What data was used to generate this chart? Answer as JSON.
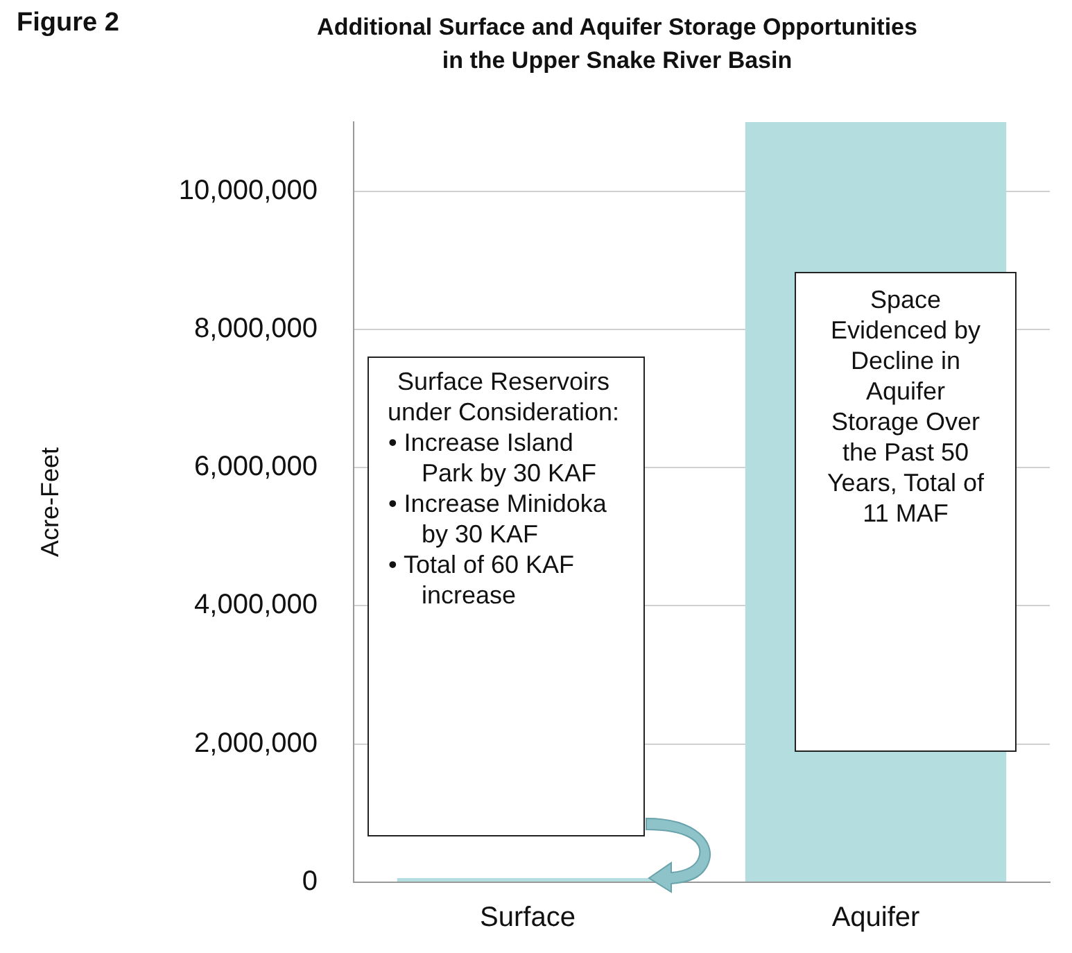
{
  "chart_data": {
    "type": "bar",
    "title": "Additional Surface and Aquifer Storage Opportunities in the Upper Snake River Basin",
    "ylabel": "Acre-Feet",
    "categories": [
      "Surface",
      "Aquifer"
    ],
    "values": [
      60000,
      11000000
    ],
    "color": "#b4dde0",
    "ylim": [
      0,
      11000000
    ],
    "yticks": [
      0,
      {
        "value": 2000000,
        "label": "2,000,000"
      },
      {
        "value": 4000000,
        "label": "4,000,000"
      },
      {
        "value": 6000000,
        "label": "6,000,000"
      },
      {
        "value": 8000000,
        "label": "8,000,000"
      },
      {
        "value": 10000000,
        "label": "10,000,000"
      }
    ],
    "grid": "y",
    "annotations": [
      "Figure 2",
      "Surface Reservoirs under Consideration:\n•  Increase Island Park by 30 KAF\n•  Increase Minidoka by 30 KAF\n•  Total of 60 KAF increase",
      "Space Evidenced by Decline in Aquifer Storage Over the Past 50 Years, Total of 11 MAF"
    ]
  }
}
